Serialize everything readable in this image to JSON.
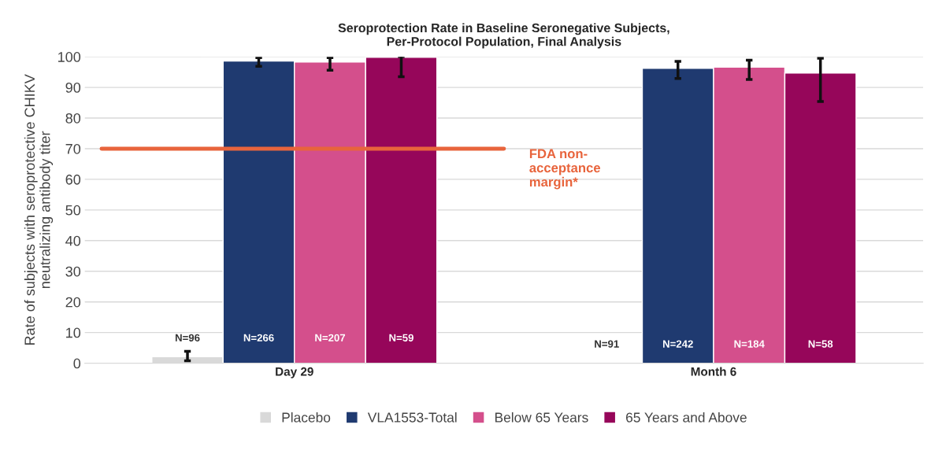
{
  "chart_data": {
    "type": "bar",
    "title": "Seroprotection Rate in Baseline Seronegative Subjects,\nPer-Protocol Population, Final Analysis",
    "ylabel": "Rate of subjects with seroprotective CHIKV\nneutralizing antibody titer",
    "categories": [
      "Day 29",
      "Month 6"
    ],
    "series": [
      {
        "name": "Placebo",
        "color": "#d9d9d9",
        "values": [
          2.1,
          null
        ],
        "errors": [
          [
            0.8,
            3.9
          ],
          null
        ]
      },
      {
        "name": "VLA1553-Total",
        "color": "#1f3a70",
        "values": [
          98.6,
          96.2
        ],
        "errors": [
          [
            96.9,
            99.7
          ],
          [
            92.9,
            98.5
          ]
        ]
      },
      {
        "name": "Below 65 Years",
        "color": "#d44f8c",
        "values": [
          98.3,
          96.6
        ],
        "errors": [
          [
            95.6,
            99.7
          ],
          [
            92.6,
            98.9
          ]
        ]
      },
      {
        "name": "65 Years and Above",
        "color": "#96065a",
        "values": [
          99.8,
          94.7
        ],
        "errors": [
          [
            93.5,
            100
          ],
          [
            85.4,
            99.5
          ]
        ]
      }
    ],
    "annotations": [
      "N=96",
      "N=266",
      "N=207",
      "N=59",
      "N=91",
      "N=242",
      "N=184",
      "N=58"
    ],
    "ylim": [
      0,
      100
    ],
    "yticks": [
      0,
      10,
      20,
      30,
      40,
      50,
      60,
      70,
      80,
      90,
      100
    ],
    "ref_lines": [
      {
        "axis": "y",
        "value": 70,
        "label": "FDA non-\nacceptance\nmargin*",
        "color": "#e8643c"
      }
    ],
    "grid": "y",
    "legend": "bottom"
  }
}
